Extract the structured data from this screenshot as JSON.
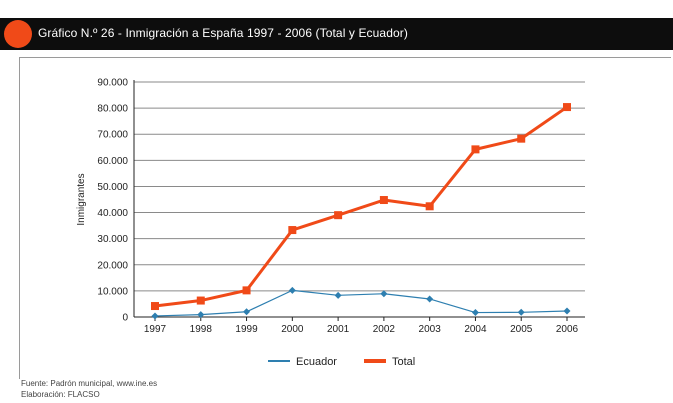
{
  "header": {
    "title": "Gráfico N.º 26 - Inmigración a España 1997 - 2006 (Total y Ecuador)"
  },
  "colors": {
    "title_bar": "#0d0d0d",
    "accent_dot": "#f04a18",
    "total": "#f04a18",
    "ecuador": "#2e7fb0"
  },
  "chart_data": {
    "type": "line",
    "ylabel": "Inmigrantes",
    "xlabel": "",
    "ylim": [
      0,
      90000
    ],
    "yticks": [
      "0",
      "10.000",
      "20.000",
      "30.000",
      "40.000",
      "50.000",
      "60.000",
      "70.000",
      "80.000",
      "90.000"
    ],
    "categories": [
      "1997",
      "1998",
      "1999",
      "2000",
      "2001",
      "2002",
      "2003",
      "2004",
      "2005",
      "2006"
    ],
    "grid": true,
    "legend": "bottom",
    "series": [
      {
        "name": "Ecuador",
        "color": "#2e7fb0",
        "values": [
          400,
          900,
          2000,
          10200,
          8300,
          8900,
          6900,
          1700,
          1800,
          2300
        ]
      },
      {
        "name": "Total",
        "color": "#f04a18",
        "values": [
          4200,
          6300,
          10200,
          33300,
          39000,
          44800,
          42400,
          64200,
          68300,
          80400
        ]
      }
    ]
  },
  "footer": {
    "source": "Fuente: Padrón municipal, www.ine.es",
    "credit": "Elaboración: FLACSO"
  }
}
